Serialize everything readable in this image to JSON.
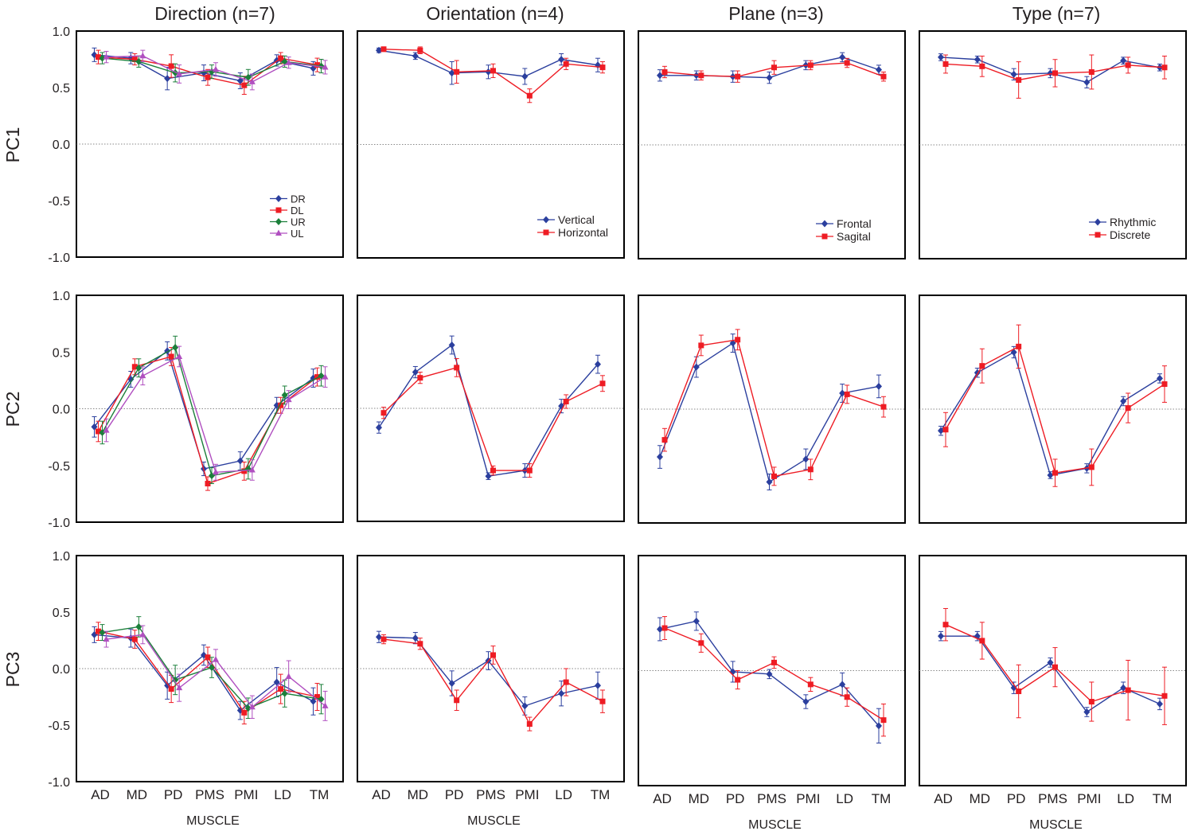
{
  "muscles": [
    "AD",
    "MD",
    "PD",
    "PMS",
    "PMI",
    "LD",
    "TM"
  ],
  "xlabel": "MUSCLE",
  "ylim": [
    -1.0,
    1.0
  ],
  "yticks": [
    "1.0",
    "0.5",
    "0.0",
    "-0.5",
    "-1.0"
  ],
  "column_titles": [
    "Direction (n=7)",
    "Orientation (n=4)",
    "Plane (n=3)",
    "Type (n=7)"
  ],
  "row_labels": [
    "PC1",
    "PC2",
    "PC3"
  ],
  "series_colors": {
    "DR": "#2b3f9e",
    "DL": "#ee1c24",
    "UR": "#1b7f3a",
    "UL": "#b04fc0",
    "Vertical": "#2b3f9e",
    "Horizontal": "#ee1c24",
    "Frontal": "#2b3f9e",
    "Sagital": "#ee1c24",
    "Rhythmic": "#2b3f9e",
    "Discrete": "#ee1c24"
  },
  "chart_data": [
    {
      "type": "line",
      "title": "Direction (n=7)",
      "ylabel": "PC1",
      "xlabel": "MUSCLE",
      "categories": [
        "AD",
        "MD",
        "PD",
        "PMS",
        "PMI",
        "LD",
        "TM"
      ],
      "ylim": [
        -1,
        1
      ],
      "legend": "bottom-right",
      "series": [
        {
          "name": "DR",
          "marker": "diamond",
          "values": [
            0.79,
            0.76,
            0.58,
            0.63,
            0.56,
            0.74,
            0.67
          ],
          "errors": [
            0.06,
            0.05,
            0.1,
            0.07,
            0.07,
            0.05,
            0.06
          ]
        },
        {
          "name": "DL",
          "marker": "square",
          "values": [
            0.77,
            0.75,
            0.69,
            0.59,
            0.52,
            0.76,
            0.7
          ],
          "errors": [
            0.06,
            0.05,
            0.1,
            0.07,
            0.08,
            0.05,
            0.06
          ]
        },
        {
          "name": "UR",
          "marker": "diamond",
          "values": [
            0.76,
            0.73,
            0.63,
            0.64,
            0.59,
            0.73,
            0.69
          ],
          "errors": [
            0.05,
            0.05,
            0.08,
            0.06,
            0.07,
            0.05,
            0.06
          ]
        },
        {
          "name": "UL",
          "marker": "triangle",
          "values": [
            0.77,
            0.78,
            0.62,
            0.66,
            0.55,
            0.72,
            0.68
          ],
          "errors": [
            0.05,
            0.05,
            0.08,
            0.06,
            0.07,
            0.05,
            0.06
          ]
        }
      ]
    },
    {
      "type": "line",
      "title": "Orientation (n=4)",
      "ylabel": "PC1",
      "xlabel": "MUSCLE",
      "categories": [
        "AD",
        "MD",
        "PD",
        "PMS",
        "PMI",
        "LD",
        "TM"
      ],
      "ylim": [
        -1,
        1
      ],
      "legend": "bottom-right",
      "series": [
        {
          "name": "Vertical",
          "marker": "diamond",
          "values": [
            0.83,
            0.78,
            0.63,
            0.64,
            0.6,
            0.75,
            0.7
          ],
          "errors": [
            0.02,
            0.03,
            0.1,
            0.06,
            0.07,
            0.05,
            0.06
          ]
        },
        {
          "name": "Horizontal",
          "marker": "square",
          "values": [
            0.84,
            0.83,
            0.64,
            0.65,
            0.43,
            0.71,
            0.68
          ],
          "errors": [
            0.02,
            0.03,
            0.1,
            0.06,
            0.06,
            0.05,
            0.05
          ]
        }
      ]
    },
    {
      "type": "line",
      "title": "Plane (n=3)",
      "ylabel": "PC1",
      "xlabel": "MUSCLE",
      "categories": [
        "AD",
        "MD",
        "PD",
        "PMS",
        "PMI",
        "LD",
        "TM"
      ],
      "ylim": [
        -1,
        1
      ],
      "legend": "bottom-right",
      "series": [
        {
          "name": "Frontal",
          "marker": "diamond",
          "values": [
            0.61,
            0.61,
            0.6,
            0.59,
            0.7,
            0.77,
            0.66
          ],
          "errors": [
            0.05,
            0.04,
            0.05,
            0.05,
            0.04,
            0.04,
            0.04
          ]
        },
        {
          "name": "Sagital",
          "marker": "square",
          "values": [
            0.64,
            0.61,
            0.6,
            0.68,
            0.7,
            0.72,
            0.6
          ],
          "errors": [
            0.05,
            0.04,
            0.05,
            0.06,
            0.04,
            0.04,
            0.04
          ]
        }
      ]
    },
    {
      "type": "line",
      "title": "Type (n=7)",
      "ylabel": "PC1",
      "xlabel": "MUSCLE",
      "categories": [
        "AD",
        "MD",
        "PD",
        "PMS",
        "PMI",
        "LD",
        "TM"
      ],
      "ylim": [
        -1,
        1
      ],
      "legend": "bottom-right",
      "series": [
        {
          "name": "Rhythmic",
          "marker": "diamond",
          "values": [
            0.77,
            0.75,
            0.62,
            0.63,
            0.55,
            0.74,
            0.68
          ],
          "errors": [
            0.03,
            0.03,
            0.05,
            0.04,
            0.05,
            0.03,
            0.03
          ]
        },
        {
          "name": "Discrete",
          "marker": "square",
          "values": [
            0.71,
            0.69,
            0.57,
            0.63,
            0.64,
            0.7,
            0.68
          ],
          "errors": [
            0.08,
            0.09,
            0.16,
            0.12,
            0.15,
            0.07,
            0.1
          ]
        }
      ]
    },
    {
      "type": "line",
      "title": "Direction (n=7)",
      "ylabel": "PC2",
      "xlabel": "MUSCLE",
      "categories": [
        "AD",
        "MD",
        "PD",
        "PMS",
        "PMI",
        "LD",
        "TM"
      ],
      "ylim": [
        -1,
        1
      ],
      "series": [
        {
          "name": "DR",
          "marker": "diamond",
          "values": [
            -0.16,
            0.26,
            0.51,
            -0.53,
            -0.46,
            0.03,
            0.27
          ],
          "errors": [
            0.09,
            0.07,
            0.08,
            0.06,
            0.08,
            0.07,
            0.08
          ]
        },
        {
          "name": "DL",
          "marker": "square",
          "values": [
            -0.2,
            0.37,
            0.46,
            -0.66,
            -0.55,
            0.03,
            0.28
          ],
          "errors": [
            0.09,
            0.07,
            0.08,
            0.06,
            0.08,
            0.07,
            0.08
          ]
        },
        {
          "name": "UR",
          "marker": "diamond",
          "values": [
            -0.21,
            0.36,
            0.54,
            -0.59,
            -0.53,
            0.12,
            0.29
          ],
          "errors": [
            0.1,
            0.08,
            0.1,
            0.07,
            0.09,
            0.08,
            0.09
          ]
        },
        {
          "name": "UL",
          "marker": "triangle",
          "values": [
            -0.19,
            0.29,
            0.46,
            -0.56,
            -0.54,
            0.08,
            0.28
          ],
          "errors": [
            0.1,
            0.08,
            0.09,
            0.07,
            0.09,
            0.08,
            0.09
          ]
        }
      ]
    },
    {
      "type": "line",
      "title": "Orientation (n=4)",
      "ylabel": "PC2",
      "xlabel": "MUSCLE",
      "categories": [
        "AD",
        "MD",
        "PD",
        "PMS",
        "PMI",
        "LD",
        "TM"
      ],
      "ylim": [
        -1,
        1
      ],
      "series": [
        {
          "name": "Vertical",
          "marker": "diamond",
          "values": [
            -0.17,
            0.32,
            0.56,
            -0.6,
            -0.55,
            0.02,
            0.39
          ],
          "errors": [
            0.05,
            0.05,
            0.08,
            0.03,
            0.06,
            0.06,
            0.08
          ]
        },
        {
          "name": "Horizontal",
          "marker": "square",
          "values": [
            -0.04,
            0.27,
            0.36,
            -0.55,
            -0.55,
            0.06,
            0.22
          ],
          "errors": [
            0.05,
            0.05,
            0.08,
            0.04,
            0.06,
            0.06,
            0.07
          ]
        }
      ]
    },
    {
      "type": "line",
      "title": "Plane (n=3)",
      "ylabel": "PC2",
      "xlabel": "MUSCLE",
      "categories": [
        "AD",
        "MD",
        "PD",
        "PMS",
        "PMI",
        "LD",
        "TM"
      ],
      "ylim": [
        -1,
        1
      ],
      "series": [
        {
          "name": "Frontal",
          "marker": "diamond",
          "values": [
            -0.42,
            0.37,
            0.58,
            -0.64,
            -0.44,
            0.14,
            0.2
          ],
          "errors": [
            0.1,
            0.09,
            0.08,
            0.07,
            0.09,
            0.08,
            0.1
          ]
        },
        {
          "name": "Sagital",
          "marker": "square",
          "values": [
            -0.27,
            0.56,
            0.61,
            -0.59,
            -0.53,
            0.13,
            0.02
          ],
          "errors": [
            0.1,
            0.09,
            0.09,
            0.08,
            0.09,
            0.08,
            0.09
          ]
        }
      ]
    },
    {
      "type": "line",
      "title": "Type (n=7)",
      "ylabel": "PC2",
      "xlabel": "MUSCLE",
      "categories": [
        "AD",
        "MD",
        "PD",
        "PMS",
        "PMI",
        "LD",
        "TM"
      ],
      "ylim": [
        -1,
        1
      ],
      "series": [
        {
          "name": "Rhythmic",
          "marker": "diamond",
          "values": [
            -0.19,
            0.32,
            0.5,
            -0.58,
            -0.52,
            0.07,
            0.27
          ],
          "errors": [
            0.04,
            0.04,
            0.05,
            0.03,
            0.04,
            0.04,
            0.04
          ]
        },
        {
          "name": "Discrete",
          "marker": "square",
          "values": [
            -0.18,
            0.38,
            0.55,
            -0.56,
            -0.51,
            0.01,
            0.22
          ],
          "errors": [
            0.15,
            0.15,
            0.19,
            0.12,
            0.16,
            0.13,
            0.16
          ]
        }
      ]
    },
    {
      "type": "line",
      "title": "Direction (n=7)",
      "ylabel": "PC3",
      "xlabel": "MUSCLE",
      "categories": [
        "AD",
        "MD",
        "PD",
        "PMS",
        "PMI",
        "LD",
        "TM"
      ],
      "ylim": [
        -1,
        1
      ],
      "series": [
        {
          "name": "DR",
          "marker": "diamond",
          "values": [
            0.3,
            0.27,
            -0.15,
            0.12,
            -0.37,
            -0.12,
            -0.29
          ],
          "errors": [
            0.07,
            0.08,
            0.12,
            0.09,
            0.08,
            0.13,
            0.12
          ]
        },
        {
          "name": "DL",
          "marker": "square",
          "values": [
            0.33,
            0.26,
            -0.18,
            0.1,
            -0.39,
            -0.18,
            -0.25
          ],
          "errors": [
            0.08,
            0.08,
            0.12,
            0.09,
            0.1,
            0.13,
            0.12
          ]
        },
        {
          "name": "UR",
          "marker": "diamond",
          "values": [
            0.32,
            0.37,
            -0.1,
            0.01,
            -0.35,
            -0.22,
            -0.27
          ],
          "errors": [
            0.07,
            0.09,
            0.13,
            0.09,
            0.09,
            0.12,
            0.13
          ]
        },
        {
          "name": "UL",
          "marker": "triangle",
          "values": [
            0.26,
            0.3,
            -0.17,
            0.08,
            -0.34,
            -0.07,
            -0.33
          ],
          "errors": [
            0.07,
            0.08,
            0.12,
            0.09,
            0.1,
            0.14,
            0.13
          ]
        }
      ]
    },
    {
      "type": "line",
      "title": "Orientation (n=4)",
      "ylabel": "PC3",
      "xlabel": "MUSCLE",
      "categories": [
        "AD",
        "MD",
        "PD",
        "PMS",
        "PMI",
        "LD",
        "TM"
      ],
      "ylim": [
        -1,
        1
      ],
      "series": [
        {
          "name": "Vertical",
          "marker": "diamond",
          "values": [
            0.28,
            0.27,
            -0.13,
            0.07,
            -0.33,
            -0.22,
            -0.15
          ],
          "errors": [
            0.05,
            0.05,
            0.11,
            0.08,
            0.08,
            0.11,
            0.12
          ]
        },
        {
          "name": "Horizontal",
          "marker": "square",
          "values": [
            0.26,
            0.22,
            -0.28,
            0.12,
            -0.49,
            -0.12,
            -0.29
          ],
          "errors": [
            0.04,
            0.05,
            0.09,
            0.08,
            0.06,
            0.12,
            0.1
          ]
        }
      ]
    },
    {
      "type": "line",
      "title": "Plane (n=3)",
      "ylabel": "PC3",
      "xlabel": "MUSCLE",
      "categories": [
        "AD",
        "MD",
        "PD",
        "PMS",
        "PMI",
        "LD",
        "TM"
      ],
      "ylim": [
        -1,
        1
      ],
      "series": [
        {
          "name": "Frontal",
          "marker": "diamond",
          "values": [
            0.36,
            0.43,
            -0.01,
            -0.03,
            -0.27,
            -0.12,
            -0.48
          ],
          "errors": [
            0.1,
            0.08,
            0.09,
            0.04,
            0.06,
            0.1,
            0.15
          ]
        },
        {
          "name": "Sagital",
          "marker": "square",
          "values": [
            0.37,
            0.24,
            -0.08,
            0.07,
            -0.12,
            -0.23,
            -0.43
          ],
          "errors": [
            0.1,
            0.08,
            0.08,
            0.05,
            0.06,
            0.08,
            0.14
          ]
        }
      ]
    },
    {
      "type": "line",
      "title": "Type (n=7)",
      "ylabel": "PC3",
      "xlabel": "MUSCLE",
      "categories": [
        "AD",
        "MD",
        "PD",
        "PMS",
        "PMI",
        "LD",
        "TM"
      ],
      "ylim": [
        -1,
        1
      ],
      "series": [
        {
          "name": "Rhythmic",
          "marker": "diamond",
          "values": [
            0.3,
            0.3,
            -0.15,
            0.07,
            -0.36,
            -0.15,
            -0.29
          ],
          "errors": [
            0.04,
            0.04,
            0.05,
            0.04,
            0.04,
            0.05,
            0.05
          ]
        },
        {
          "name": "Discrete",
          "marker": "square",
          "values": [
            0.4,
            0.26,
            -0.18,
            0.03,
            -0.27,
            -0.17,
            -0.22
          ],
          "errors": [
            0.14,
            0.16,
            0.23,
            0.17,
            0.17,
            0.26,
            0.25
          ]
        }
      ]
    }
  ]
}
